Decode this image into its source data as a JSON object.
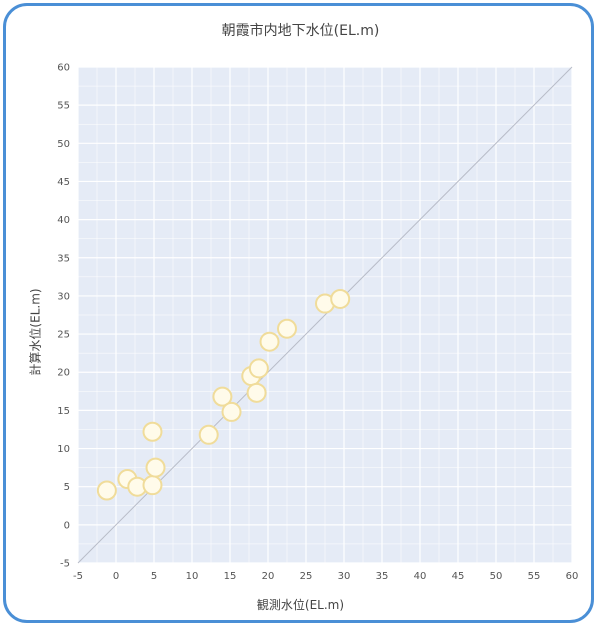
{
  "chart_data": {
    "type": "scatter",
    "title": "朝霞市内地下水位(EL.m)",
    "xlabel": "観測水位(EL.m)",
    "ylabel": "計算水位(EL.m)",
    "xlim": [
      -5,
      60
    ],
    "ylim": [
      -5,
      60
    ],
    "xticks": [
      -5,
      0,
      5,
      10,
      15,
      20,
      25,
      30,
      35,
      40,
      45,
      50,
      55,
      60
    ],
    "yticks": [
      -5,
      0,
      5,
      10,
      15,
      20,
      25,
      30,
      35,
      40,
      45,
      50,
      55,
      60
    ],
    "grid": true,
    "reference_line": "y = x",
    "points": [
      {
        "x": -1.2,
        "y": 4.5
      },
      {
        "x": 1.5,
        "y": 6.0
      },
      {
        "x": 2.8,
        "y": 5.0
      },
      {
        "x": 4.8,
        "y": 5.2
      },
      {
        "x": 5.2,
        "y": 7.5
      },
      {
        "x": 4.8,
        "y": 12.2
      },
      {
        "x": 12.2,
        "y": 11.8
      },
      {
        "x": 14.0,
        "y": 16.8
      },
      {
        "x": 15.2,
        "y": 14.8
      },
      {
        "x": 17.8,
        "y": 19.5
      },
      {
        "x": 18.8,
        "y": 20.5
      },
      {
        "x": 18.5,
        "y": 17.3
      },
      {
        "x": 20.2,
        "y": 24.0
      },
      {
        "x": 22.5,
        "y": 25.7
      },
      {
        "x": 27.5,
        "y": 29.0
      },
      {
        "x": 29.5,
        "y": 29.6
      }
    ],
    "colors": {
      "plot_bg": "#e5ebf6",
      "marker_fill": "#fffbea",
      "marker_stroke": "#f0dc9a",
      "frame": "#4a8fd6"
    }
  }
}
